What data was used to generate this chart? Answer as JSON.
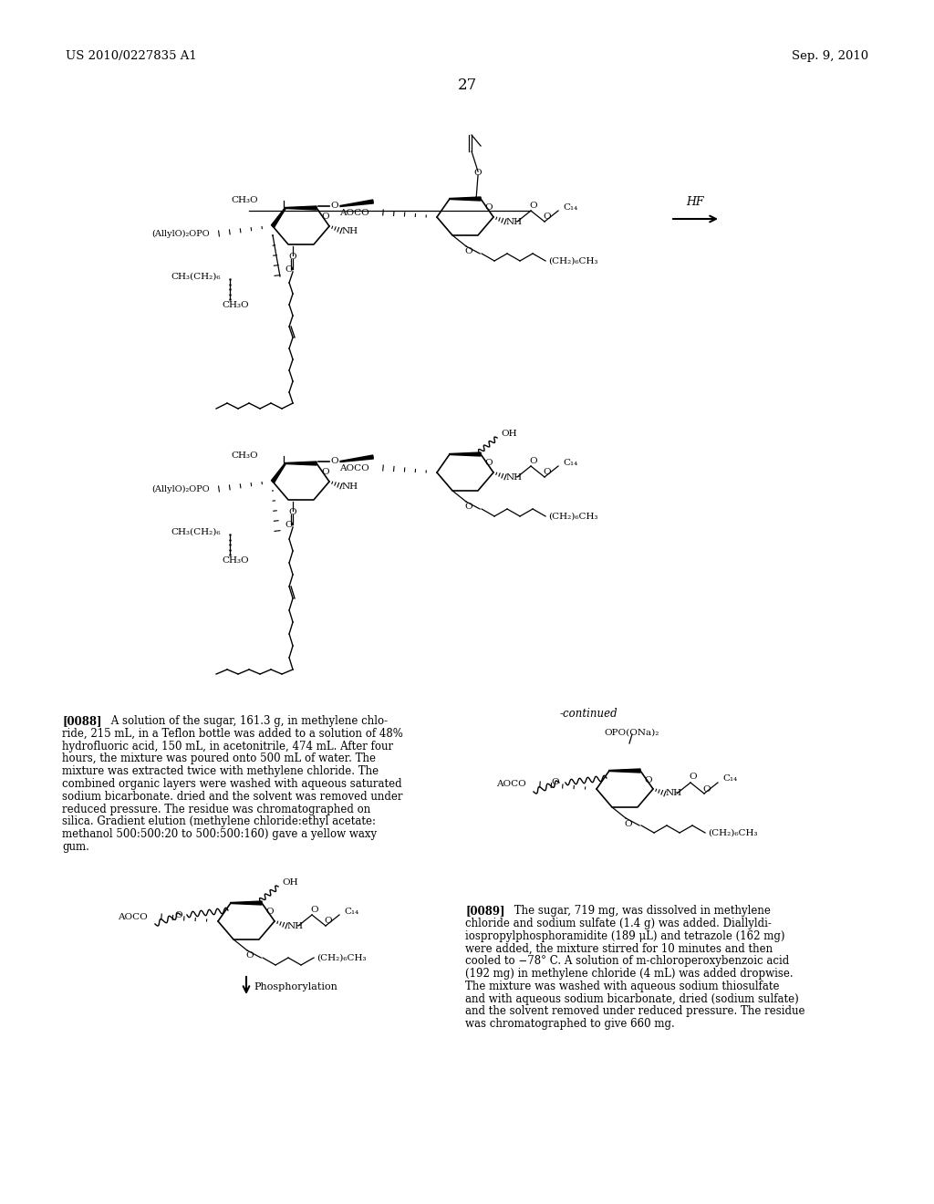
{
  "page_number": "27",
  "header_left": "US 2010/0227835 A1",
  "header_right": "Sep. 9, 2010",
  "background_color": "#ffffff",
  "text_color": "#000000",
  "para_0088_lines": [
    "[0088]   A solution of the sugar, 161.3 g, in methylene chlo-",
    "ride, 215 mL, in a Teflon bottle was added to a solution of 48%",
    "hydrofluoric acid, 150 mL, in acetonitrile, 474 mL. After four",
    "hours, the mixture was poured onto 500 mL of water. The",
    "mixture was extracted twice with methylene chloride. The",
    "combined organic layers were washed with aqueous saturated",
    "sodium bicarbonate. dried and the solvent was removed under",
    "reduced pressure. The residue was chromatographed on",
    "silica. Gradient elution (methylene chloride:ethyl acetate:",
    "methanol 500:500:20 to 500:500:160) gave a yellow waxy",
    "gum."
  ],
  "para_0089_lines": [
    "[0089]   The sugar, 719 mg, was dissolved in methylene",
    "chloride and sodium sulfate (1.4 g) was added. Diallyldi-",
    "iospropylphosphoramidite (189 μL) and tetrazole (162 mg)",
    "were added, the mixture stirred for 10 minutes and then",
    "cooled to −78° C. A solution of m-chloroperoxybenzoic acid",
    "(192 mg) in methylene chloride (4 mL) was added dropwise.",
    "The mixture was washed with aqueous sodium thiosulfate",
    "and with aqueous sodium bicarbonate, dried (sodium sulfate)",
    "and the solvent removed under reduced pressure. The residue",
    "was chromatographed to give 660 mg."
  ]
}
